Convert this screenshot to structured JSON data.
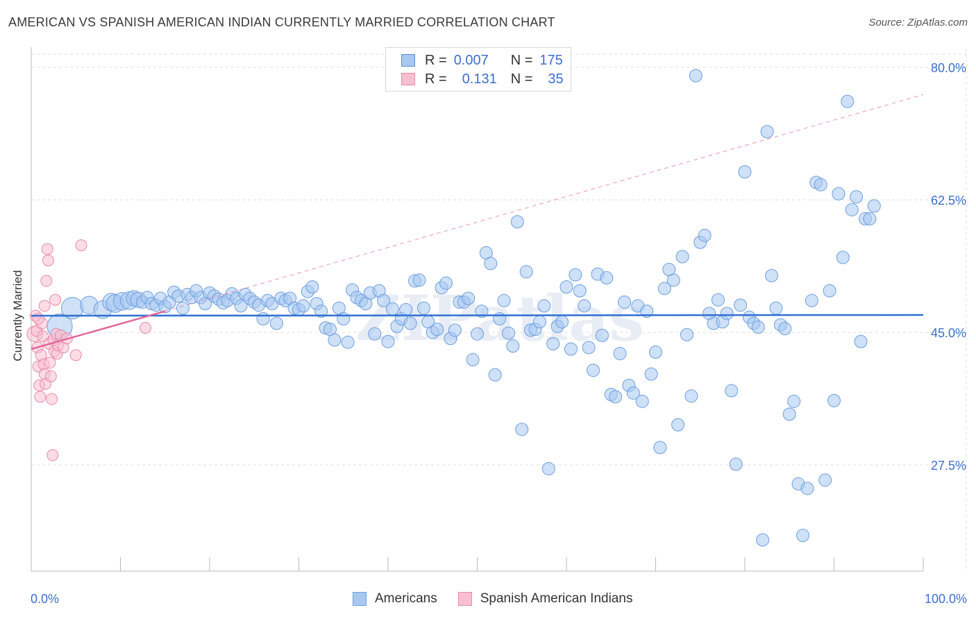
{
  "header": {
    "title": "AMERICAN VS SPANISH AMERICAN INDIAN CURRENTLY MARRIED CORRELATION CHART",
    "source": "Source: ZipAtlas.com"
  },
  "legend": {
    "rows": [
      {
        "r_label": "R =",
        "r_value": "0.007",
        "n_label": "N =",
        "n_value": "175",
        "color": "#a8c8f0",
        "border": "#5b8fd6"
      },
      {
        "r_label": "R =",
        "r_value": "0.131",
        "n_label": "N =",
        "n_value": "35",
        "color": "#f7bfd0",
        "border": "#e58aa6"
      }
    ]
  },
  "bottom_legend": [
    "Americans",
    "Spanish American Indians"
  ],
  "colors": {
    "blue_fill": "#a8c8f0",
    "blue_stroke": "#6b9de0",
    "blue_line": "#2f6fd1",
    "pink_fill": "#f7bfd0",
    "pink_stroke": "#e88aa8",
    "pink_line": "#e0679a",
    "grid": "#dedede",
    "axis_text": "#3b6fcf"
  },
  "chart_data": {
    "type": "scatter",
    "title": "AMERICAN VS SPANISH AMERICAN INDIAN CURRENTLY MARRIED CORRELATION CHART",
    "xlabel": "",
    "ylabel": "Currently Married",
    "x_tick_labels": [
      "0.0%",
      "100.0%"
    ],
    "y_tick_labels": [
      "80.0%",
      "62.5%",
      "45.0%",
      "27.5%"
    ],
    "y_ticks": [
      80.0,
      62.5,
      45.0,
      27.5
    ],
    "xlim": [
      0,
      100
    ],
    "ylim": [
      10,
      83
    ],
    "grid": true,
    "watermark": "ZIPatlas",
    "series": [
      {
        "name": "Americans",
        "trend": {
          "x": [
            0,
            100
          ],
          "y": [
            47.2,
            47.3
          ],
          "style": "solid"
        },
        "points": [
          [
            3.2,
            45.8,
            4
          ],
          [
            4.6,
            48.2,
            3
          ],
          [
            6.5,
            48.6,
            2
          ],
          [
            8.0,
            48.0,
            2
          ],
          [
            9.0,
            49.0,
            2
          ],
          [
            9.4,
            48.8,
            2
          ],
          [
            10.2,
            49.1,
            2
          ],
          [
            11.0,
            49.2,
            2
          ],
          [
            11.5,
            49.5,
            1.5
          ],
          [
            12.0,
            49.3,
            1.5
          ],
          [
            12.5,
            49.0,
            1
          ],
          [
            13.0,
            49.6,
            1
          ],
          [
            13.5,
            48.8,
            1
          ],
          [
            14.0,
            48.6,
            1
          ],
          [
            14.5,
            49.5,
            1
          ],
          [
            15.0,
            48.4,
            1
          ],
          [
            15.5,
            49.0,
            1
          ],
          [
            16.0,
            50.3,
            1
          ],
          [
            16.5,
            49.8,
            1
          ],
          [
            17.0,
            48.2,
            1
          ],
          [
            17.5,
            50.0,
            1
          ],
          [
            18.0,
            49.6,
            1
          ],
          [
            18.5,
            50.5,
            1
          ],
          [
            19.0,
            49.6,
            1
          ],
          [
            19.5,
            48.8,
            1
          ],
          [
            20.0,
            50.2,
            1
          ],
          [
            20.5,
            49.8,
            1
          ],
          [
            21.0,
            49.4,
            1
          ],
          [
            21.5,
            48.9,
            1
          ],
          [
            22.0,
            49.2,
            1
          ],
          [
            22.5,
            50.1,
            1
          ],
          [
            23.0,
            49.5,
            1
          ],
          [
            23.5,
            48.5,
            1
          ],
          [
            24.0,
            50.0,
            1
          ],
          [
            24.5,
            49.5,
            1
          ],
          [
            25.0,
            49.0,
            1
          ],
          [
            25.5,
            48.6,
            1
          ],
          [
            26.0,
            46.8,
            1
          ],
          [
            26.5,
            49.2,
            1
          ],
          [
            27.0,
            48.8,
            1
          ],
          [
            27.5,
            46.2,
            1
          ],
          [
            28.0,
            49.5,
            1
          ],
          [
            28.5,
            49.2,
            1
          ],
          [
            29.0,
            49.5,
            1
          ],
          [
            29.5,
            48.2,
            1
          ],
          [
            30.0,
            48.0,
            1
          ],
          [
            30.5,
            48.5,
            1
          ],
          [
            31.0,
            50.4,
            1
          ],
          [
            31.5,
            51.0,
            1
          ],
          [
            32.0,
            48.8,
            1
          ],
          [
            32.5,
            47.8,
            1
          ],
          [
            33.0,
            45.6,
            1
          ],
          [
            33.5,
            45.4,
            1
          ],
          [
            34.0,
            44.0,
            1
          ],
          [
            34.5,
            48.2,
            1
          ],
          [
            35.0,
            46.8,
            1
          ],
          [
            35.5,
            43.7,
            1
          ],
          [
            36.0,
            50.6,
            1
          ],
          [
            36.5,
            49.6,
            1
          ],
          [
            37.0,
            49.2,
            1
          ],
          [
            37.5,
            48.8,
            1
          ],
          [
            38.0,
            50.2,
            1
          ],
          [
            38.5,
            44.8,
            1
          ],
          [
            39.0,
            50.5,
            1
          ],
          [
            39.5,
            49.2,
            1
          ],
          [
            40.0,
            43.8,
            1
          ],
          [
            40.5,
            48.1,
            1
          ],
          [
            41.0,
            45.8,
            1
          ],
          [
            41.5,
            46.8,
            1
          ],
          [
            42.0,
            48.0,
            1
          ],
          [
            42.5,
            46.2,
            1
          ],
          [
            43.0,
            51.8,
            1
          ],
          [
            43.5,
            51.9,
            1
          ],
          [
            44.0,
            48.2,
            1
          ],
          [
            44.5,
            46.4,
            1
          ],
          [
            45.0,
            45.0,
            1
          ],
          [
            45.5,
            45.4,
            1
          ],
          [
            46.0,
            50.9,
            1
          ],
          [
            46.5,
            51.5,
            1
          ],
          [
            47.0,
            44.2,
            1
          ],
          [
            47.5,
            45.3,
            1
          ],
          [
            48.0,
            49.0,
            1
          ],
          [
            48.5,
            49.0,
            1
          ],
          [
            49.0,
            49.5,
            1
          ],
          [
            49.5,
            41.4,
            1
          ],
          [
            50.0,
            44.8,
            1
          ],
          [
            50.5,
            47.8,
            1
          ],
          [
            51.0,
            55.5,
            1
          ],
          [
            51.5,
            54.1,
            1
          ],
          [
            52.0,
            39.4,
            1
          ],
          [
            52.5,
            46.8,
            1
          ],
          [
            53.0,
            49.2,
            1
          ],
          [
            53.5,
            44.9,
            1
          ],
          [
            54.0,
            43.2,
            1
          ],
          [
            54.5,
            59.6,
            1
          ],
          [
            55.0,
            32.2,
            1
          ],
          [
            55.5,
            53.0,
            1
          ],
          [
            56.0,
            45.3,
            1
          ],
          [
            56.5,
            45.4,
            1
          ],
          [
            57.0,
            46.4,
            1
          ],
          [
            57.5,
            48.5,
            1
          ],
          [
            58.0,
            27.0,
            1
          ],
          [
            58.5,
            43.5,
            1
          ],
          [
            59.0,
            45.8,
            1
          ],
          [
            59.5,
            46.4,
            1
          ],
          [
            60.0,
            51.0,
            1
          ],
          [
            60.5,
            42.8,
            1
          ],
          [
            61.0,
            52.6,
            1
          ],
          [
            61.5,
            50.5,
            1
          ],
          [
            62.0,
            48.5,
            1
          ],
          [
            62.5,
            43.0,
            1
          ],
          [
            63.0,
            40.0,
            1
          ],
          [
            63.5,
            52.7,
            1
          ],
          [
            64.0,
            44.6,
            1
          ],
          [
            64.5,
            52.2,
            1
          ],
          [
            65.0,
            36.8,
            1
          ],
          [
            65.5,
            36.5,
            1
          ],
          [
            66.0,
            42.2,
            1
          ],
          [
            66.5,
            49.0,
            1
          ],
          [
            67.0,
            38.0,
            1
          ],
          [
            67.5,
            37.0,
            1
          ],
          [
            68.0,
            48.5,
            1
          ],
          [
            68.5,
            35.9,
            1
          ],
          [
            69.0,
            47.8,
            1
          ],
          [
            69.5,
            39.5,
            1
          ],
          [
            70.0,
            42.4,
            1
          ],
          [
            70.5,
            29.8,
            1
          ],
          [
            71.0,
            50.8,
            1
          ],
          [
            71.5,
            53.3,
            1
          ],
          [
            72.0,
            51.9,
            1
          ],
          [
            72.5,
            32.8,
            1
          ],
          [
            73.0,
            55.0,
            1
          ],
          [
            73.5,
            44.7,
            1
          ],
          [
            74.0,
            36.6,
            1
          ],
          [
            74.5,
            78.9,
            1
          ],
          [
            75.0,
            56.9,
            1
          ],
          [
            75.5,
            57.8,
            1
          ],
          [
            76.0,
            47.5,
            1
          ],
          [
            76.5,
            46.2,
            1
          ],
          [
            77.0,
            49.3,
            1
          ],
          [
            77.5,
            46.4,
            1
          ],
          [
            78.0,
            47.5,
            1
          ],
          [
            78.5,
            37.3,
            1
          ],
          [
            79.0,
            27.6,
            1
          ],
          [
            79.5,
            48.6,
            1
          ],
          [
            80.0,
            66.2,
            1
          ],
          [
            80.5,
            47.0,
            1
          ],
          [
            81.0,
            46.2,
            1
          ],
          [
            81.5,
            45.7,
            1
          ],
          [
            82.0,
            17.6,
            1
          ],
          [
            82.5,
            71.5,
            1
          ],
          [
            83.0,
            52.5,
            1
          ],
          [
            83.5,
            48.2,
            1
          ],
          [
            84.0,
            46.0,
            1
          ],
          [
            84.5,
            45.5,
            1
          ],
          [
            85.0,
            34.2,
            1
          ],
          [
            85.5,
            35.9,
            1
          ],
          [
            86.0,
            25.0,
            1
          ],
          [
            86.5,
            18.2,
            1
          ],
          [
            87.0,
            24.4,
            1
          ],
          [
            87.5,
            49.2,
            1
          ],
          [
            88.0,
            64.8,
            1
          ],
          [
            88.5,
            64.5,
            1
          ],
          [
            89.0,
            25.5,
            1
          ],
          [
            89.5,
            50.5,
            1
          ],
          [
            90.0,
            36.0,
            1
          ],
          [
            90.5,
            63.3,
            1
          ],
          [
            91.0,
            54.9,
            1
          ],
          [
            91.5,
            75.5,
            1
          ],
          [
            92.0,
            61.2,
            1
          ],
          [
            92.5,
            62.9,
            1
          ],
          [
            93.0,
            43.8,
            1
          ],
          [
            93.5,
            60.0,
            1
          ],
          [
            94.0,
            60.0,
            1
          ],
          [
            94.5,
            61.7,
            1
          ]
        ]
      },
      {
        "name": "Spanish American Indians",
        "trend": {
          "x": [
            0,
            15
          ],
          "y": [
            42.8,
            47.8
          ],
          "style": "solid",
          "extended": {
            "x": [
              15,
              100
            ],
            "y": [
              47.8,
              76.4
            ],
            "style": "dashed"
          }
        },
        "points": [
          [
            0.4,
            44.8,
            2
          ],
          [
            0.5,
            47.2,
            1
          ],
          [
            0.6,
            45.2,
            1
          ],
          [
            0.7,
            43.0,
            1
          ],
          [
            0.8,
            40.5,
            1
          ],
          [
            0.9,
            38.0,
            1
          ],
          [
            1.0,
            36.5,
            1
          ],
          [
            1.1,
            42.0,
            1
          ],
          [
            1.2,
            46.2,
            1
          ],
          [
            1.3,
            44.5,
            1
          ],
          [
            1.4,
            40.8,
            1
          ],
          [
            1.5,
            39.5,
            1
          ],
          [
            1.6,
            38.2,
            1
          ],
          [
            1.7,
            51.8,
            1
          ],
          [
            1.8,
            56.0,
            1
          ],
          [
            1.9,
            54.5,
            1
          ],
          [
            2.0,
            43.5,
            1
          ],
          [
            2.1,
            41.0,
            1
          ],
          [
            2.2,
            39.2,
            1
          ],
          [
            2.3,
            36.2,
            1
          ],
          [
            2.4,
            28.8,
            1
          ],
          [
            2.5,
            44.0,
            1
          ],
          [
            2.6,
            42.5,
            1
          ],
          [
            2.7,
            49.3,
            1
          ],
          [
            2.8,
            44.8,
            1
          ],
          [
            2.9,
            42.2,
            1
          ],
          [
            3.0,
            43.3,
            1
          ],
          [
            3.3,
            44.6,
            1
          ],
          [
            3.6,
            43.0,
            1
          ],
          [
            4.0,
            44.2,
            1
          ],
          [
            5.0,
            42.0,
            1
          ],
          [
            5.6,
            56.5,
            1
          ],
          [
            12.8,
            45.6,
            1
          ],
          [
            1.5,
            48.5,
            1
          ],
          [
            0.8,
            46.8,
            1
          ]
        ]
      }
    ]
  }
}
